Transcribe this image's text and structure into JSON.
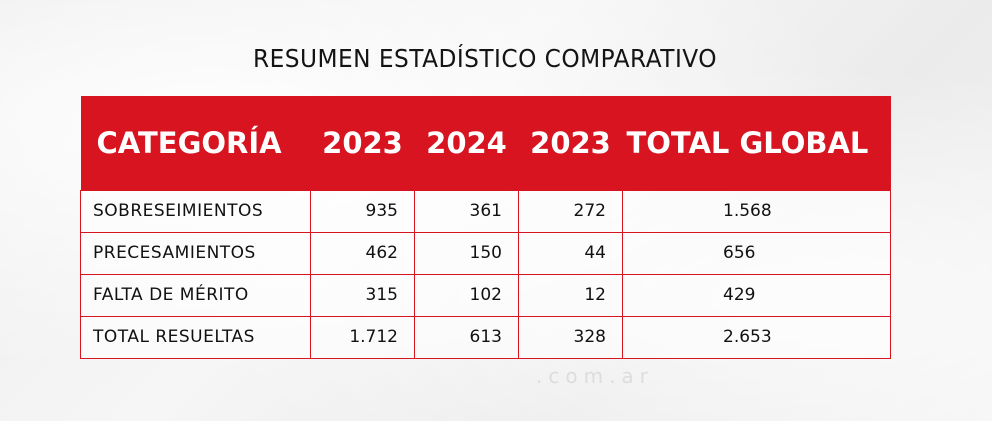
{
  "title": "RESUMEN ESTADÍSTICO COMPARATIVO",
  "watermark": ".com.ar",
  "colors": {
    "header_bg": "#d7141f",
    "header_text": "#ffffff",
    "border": "#d7141f",
    "text": "#111111"
  },
  "table": {
    "headers": [
      "CATEGORÍA",
      "2023",
      "2024",
      "2023",
      "TOTAL GLOBAL"
    ],
    "rows": [
      [
        "SOBRESEIMIENTOS",
        "935",
        "361",
        "272",
        "1.568"
      ],
      [
        "PRECESAMIENTOS",
        "462",
        "150",
        "44",
        "656"
      ],
      [
        "FALTA DE MÉRITO",
        "315",
        "102",
        "12",
        "429"
      ],
      [
        "TOTAL RESUELTAS",
        "1.712",
        "613",
        "328",
        "2.653"
      ]
    ]
  }
}
